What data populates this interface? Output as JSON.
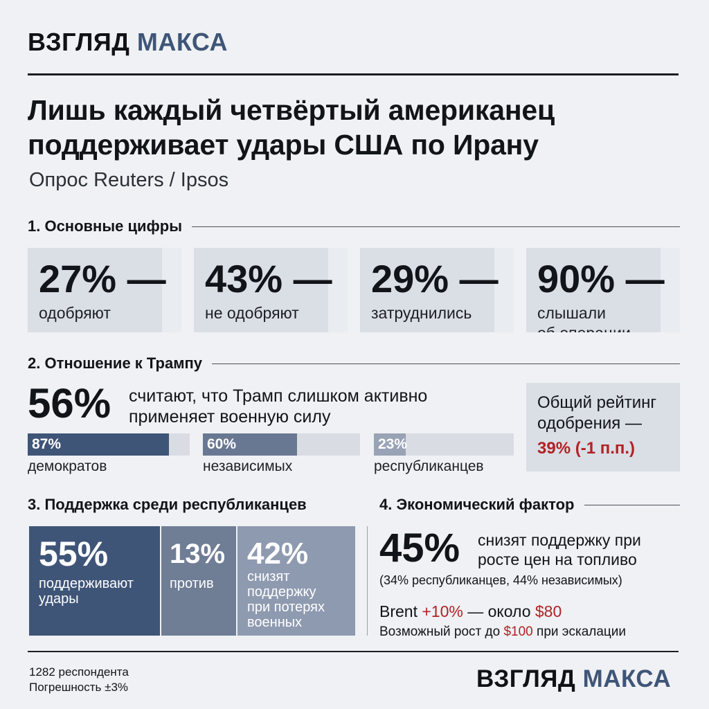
{
  "brand": {
    "part1": "ВЗГЛЯД",
    "part2": "МАКСА"
  },
  "header": {
    "title_line1": "Лишь каждый четвёртый американец",
    "title_line2": "поддерживает удары США по Ирану",
    "subtitle": "Опрос Reuters / Ipsos"
  },
  "section1": {
    "heading": "1. Основные цифры",
    "cards": [
      {
        "value": "27% —",
        "label": "одобряют"
      },
      {
        "value": "43% —",
        "label": "не одобряют"
      },
      {
        "value": "29% —",
        "label": "затруднились"
      },
      {
        "value": "90% —",
        "label_line1": "слышали",
        "label_line2": "об операции"
      }
    ]
  },
  "section2": {
    "heading": "2. Отношение к Трампу",
    "headline_value": "56%",
    "headline_text_line1": "считают, что Трамп слишком активно",
    "headline_text_line2": "применяет военную силу",
    "parties": [
      {
        "pct_label": "87%",
        "value": 87,
        "name": "демократов",
        "color": "#3f5578"
      },
      {
        "pct_label": "60%",
        "value": 60,
        "name": "независимых",
        "color": "#697892"
      },
      {
        "pct_label": "23%",
        "value": 23,
        "name": "республиканцев",
        "color": "#98a3b6"
      }
    ],
    "rating": {
      "line1": "Общий рейтинг",
      "line2": "одобрения —",
      "value": "39% (-1 п.п.)",
      "value_color": "#b02225"
    }
  },
  "section3": {
    "heading": "3. Поддержка среди республиканцев",
    "segments": [
      {
        "value": "55%",
        "label_line1": "поддерживают",
        "label_line2": "удары",
        "color": "#3f5578"
      },
      {
        "value": "13%",
        "label_line1": "против",
        "color": "#6f7d95"
      },
      {
        "value": "42%",
        "label_line1": "снизят",
        "label_line2": "поддержку",
        "label_line3": "при потерях",
        "label_line4": "военных",
        "color": "#8e9ab0"
      }
    ]
  },
  "section4": {
    "heading": "4. Экономический фактор",
    "headline_value": "45%",
    "headline_text_line1": "снизят поддержку при",
    "headline_text_line2": "росте цен на топливо",
    "detail": "(34% республиканцев, 44% независимых)",
    "brent": {
      "prefix": "Brent",
      "change": "+10%",
      "middle": "— около",
      "price": "$80"
    },
    "escalation": {
      "prefix": "Возможный рост до",
      "price": "$100",
      "suffix": "при эскалации"
    }
  },
  "footer": {
    "respondents": "1282 респондента",
    "margin": "Погрешность ±3%"
  }
}
